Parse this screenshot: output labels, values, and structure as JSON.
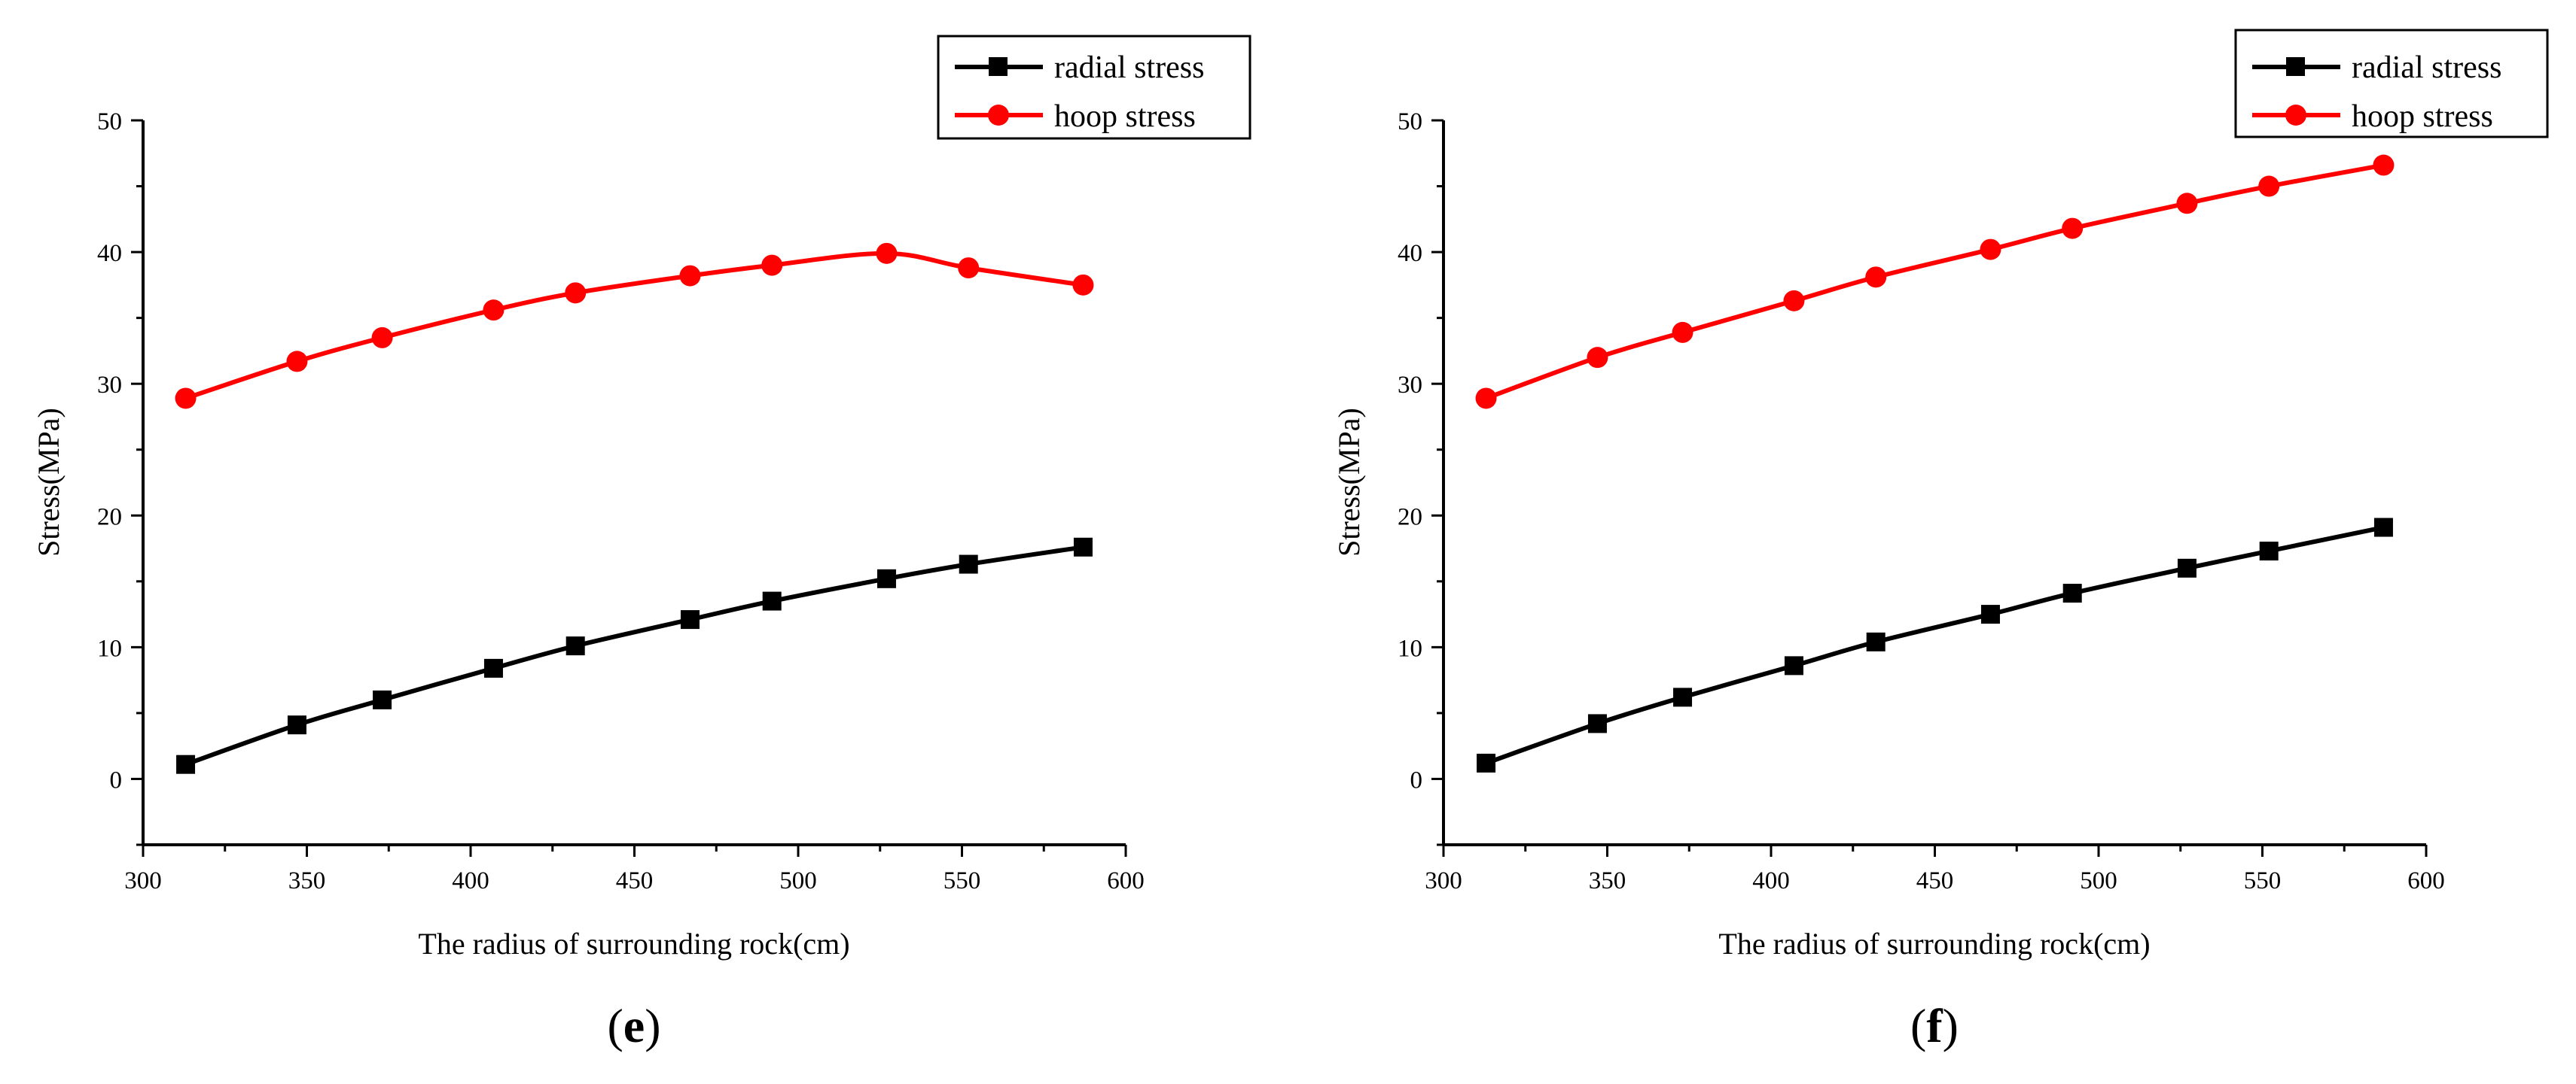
{
  "colors": {
    "radial": "#000000",
    "hoop": "#ff0000"
  },
  "chart_data": [
    {
      "type": "line",
      "panel_label": "e",
      "xlabel": "The radius of surrounding rock(cm)",
      "ylabel": "Stress(MPa)",
      "xlim": [
        300,
        600
      ],
      "ylim": [
        -5,
        50
      ],
      "xticks": [
        300,
        350,
        400,
        450,
        500,
        550,
        600
      ],
      "yticks": [
        0,
        10,
        20,
        30,
        40,
        50
      ],
      "legend_position": "top-right",
      "series": [
        {
          "name": "radial stress",
          "marker": "square",
          "color": "#000000",
          "x": [
            313,
            347,
            373,
            407,
            432,
            467,
            492,
            527,
            552,
            587
          ],
          "y": [
            1.1,
            4.1,
            6.0,
            8.4,
            10.1,
            12.1,
            13.5,
            15.2,
            16.3,
            17.6
          ]
        },
        {
          "name": "hoop stress",
          "marker": "circle",
          "color": "#ff0000",
          "x": [
            313,
            347,
            373,
            407,
            432,
            467,
            492,
            527,
            552,
            587
          ],
          "y": [
            28.9,
            31.7,
            33.5,
            35.6,
            36.9,
            38.2,
            39.0,
            39.9,
            38.8,
            37.5
          ]
        }
      ]
    },
    {
      "type": "line",
      "panel_label": "f",
      "xlabel": "The radius of surrounding rock(cm)",
      "ylabel": "Stress(MPa)",
      "xlim": [
        300,
        600
      ],
      "ylim": [
        -5,
        50
      ],
      "xticks": [
        300,
        350,
        400,
        450,
        500,
        550,
        600
      ],
      "yticks": [
        0,
        10,
        20,
        30,
        40,
        50
      ],
      "legend_position": "top-right",
      "series": [
        {
          "name": "radial stress",
          "marker": "square",
          "color": "#000000",
          "x": [
            313,
            347,
            373,
            407,
            432,
            467,
            492,
            527,
            552,
            587
          ],
          "y": [
            1.2,
            4.2,
            6.2,
            8.6,
            10.4,
            12.5,
            14.1,
            16.0,
            17.3,
            19.1
          ]
        },
        {
          "name": "hoop stress",
          "marker": "circle",
          "color": "#ff0000",
          "x": [
            313,
            347,
            373,
            407,
            432,
            467,
            492,
            527,
            552,
            587
          ],
          "y": [
            28.9,
            32.0,
            33.9,
            36.3,
            38.1,
            40.2,
            41.8,
            43.7,
            45.0,
            46.6
          ]
        }
      ]
    }
  ]
}
